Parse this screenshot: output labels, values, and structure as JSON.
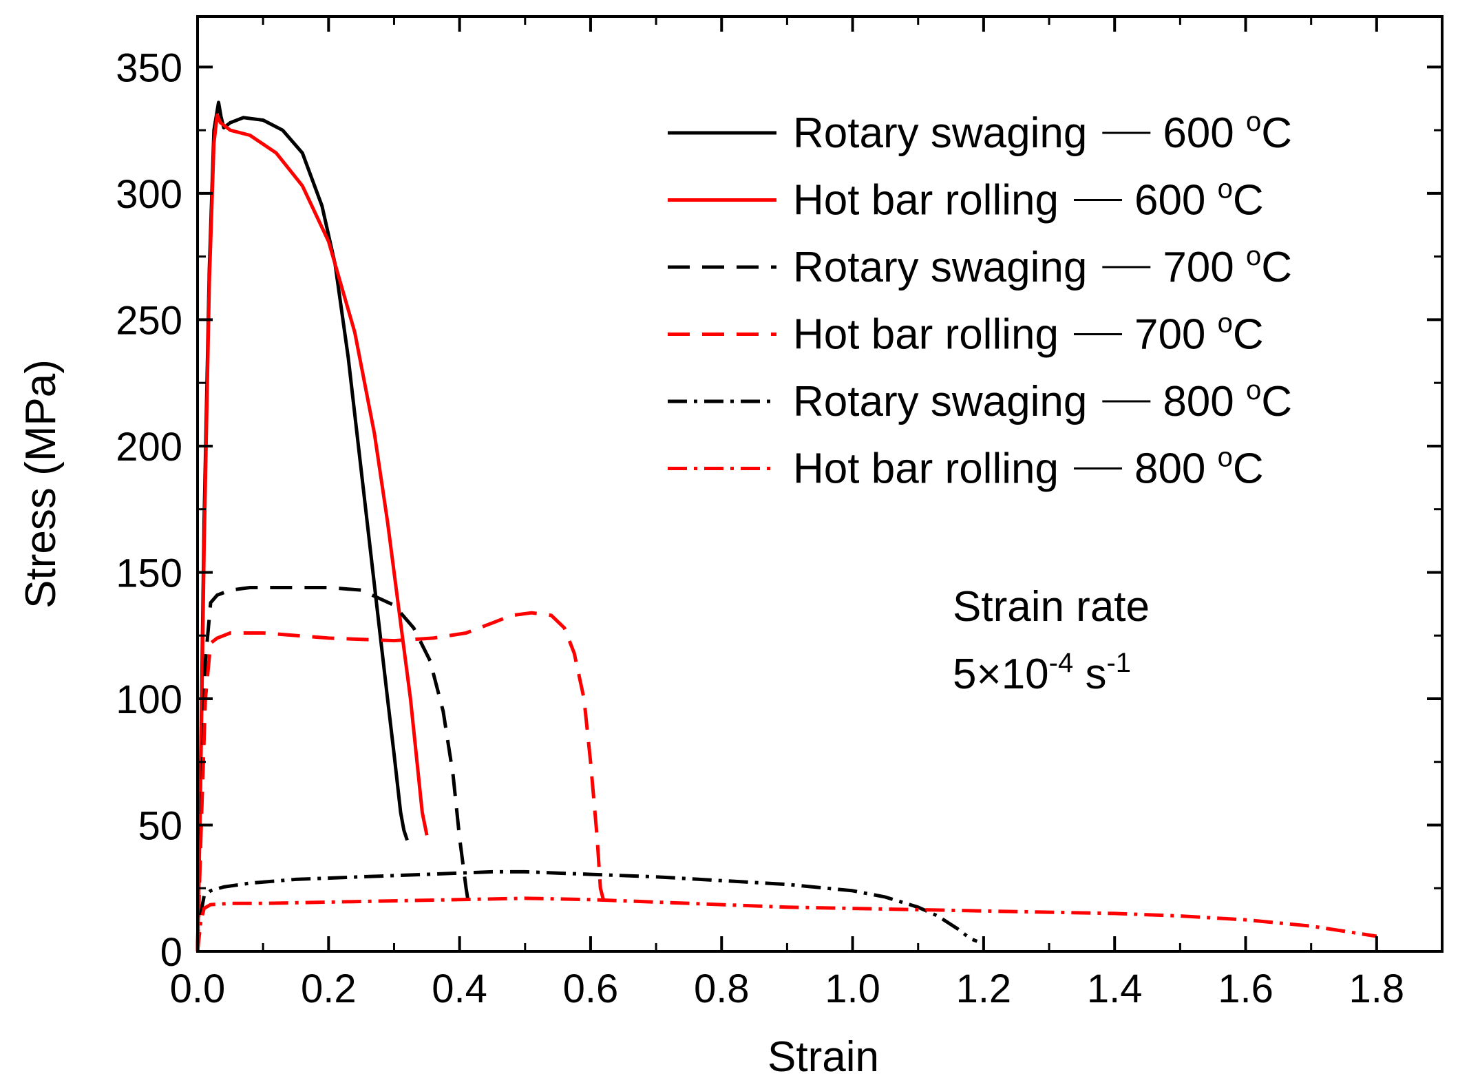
{
  "chart_data": {
    "type": "line",
    "title": "",
    "xlabel": "Strain",
    "ylabel": "Stress (MPa)",
    "xlim": [
      0.0,
      1.9
    ],
    "ylim": [
      0,
      370
    ],
    "xticks": [
      0.0,
      0.2,
      0.4,
      0.6,
      0.8,
      1.0,
      1.2,
      1.4,
      1.6,
      1.8
    ],
    "xtick_labels": [
      "0.0",
      "0.2",
      "0.4",
      "0.6",
      "0.8",
      "1.0",
      "1.2",
      "1.4",
      "1.6",
      "1.8"
    ],
    "yticks": [
      0,
      50,
      100,
      150,
      200,
      250,
      300,
      350
    ],
    "ytick_labels": [
      "0",
      "50",
      "100",
      "150",
      "200",
      "250",
      "300",
      "350"
    ],
    "legend_position": "top-right",
    "annotation": {
      "line1": "Strain rate",
      "base": "5×10",
      "exp1": "-4",
      "unit": " s",
      "exp2": "-1"
    },
    "series": [
      {
        "name": "Rotary swaging — 600 °C",
        "process": "Rotary swaging",
        "temp": "600",
        "deg": "o",
        "unit": "C",
        "color": "#000000",
        "style": "solid",
        "x": [
          0.0,
          0.004,
          0.01,
          0.018,
          0.025,
          0.032,
          0.036,
          0.04,
          0.05,
          0.07,
          0.1,
          0.13,
          0.16,
          0.19,
          0.21,
          0.23,
          0.25,
          0.27,
          0.29,
          0.3,
          0.31,
          0.315,
          0.32
        ],
        "y": [
          0,
          60,
          170,
          270,
          325,
          336,
          330,
          326,
          328,
          330,
          329,
          325,
          316,
          295,
          272,
          235,
          190,
          145,
          100,
          78,
          55,
          48,
          44
        ]
      },
      {
        "name": "Hot bar rolling — 600 °C",
        "process": "Hot bar rolling",
        "temp": "600",
        "deg": "o",
        "unit": "C",
        "color": "#ff0000",
        "style": "solid",
        "x": [
          0.0,
          0.004,
          0.01,
          0.018,
          0.025,
          0.03,
          0.035,
          0.05,
          0.08,
          0.12,
          0.16,
          0.2,
          0.24,
          0.27,
          0.29,
          0.31,
          0.325,
          0.335,
          0.343,
          0.35
        ],
        "y": [
          0,
          55,
          160,
          265,
          320,
          331,
          328,
          325,
          323,
          316,
          303,
          281,
          245,
          205,
          170,
          130,
          100,
          75,
          55,
          46
        ]
      },
      {
        "name": "Rotary swaging — 700 °C",
        "process": "Rotary swaging",
        "temp": "700",
        "deg": "o",
        "unit": "C",
        "color": "#000000",
        "style": "dashed",
        "x": [
          0.0,
          0.005,
          0.012,
          0.02,
          0.03,
          0.05,
          0.08,
          0.12,
          0.2,
          0.25,
          0.3,
          0.33,
          0.355,
          0.375,
          0.39,
          0.4,
          0.41,
          0.413
        ],
        "y": [
          0,
          50,
          115,
          138,
          141,
          143,
          144,
          144,
          144,
          143,
          137,
          128,
          115,
          95,
          70,
          45,
          25,
          20
        ]
      },
      {
        "name": "Hot bar rolling — 700 °C",
        "process": "Hot bar rolling",
        "temp": "700",
        "deg": "o",
        "unit": "C",
        "color": "#ff0000",
        "style": "dashed",
        "x": [
          0.0,
          0.005,
          0.012,
          0.02,
          0.03,
          0.05,
          0.1,
          0.2,
          0.3,
          0.36,
          0.41,
          0.45,
          0.48,
          0.51,
          0.54,
          0.56,
          0.575,
          0.59,
          0.6,
          0.61,
          0.615,
          0.62
        ],
        "y": [
          0,
          45,
          100,
          122,
          124,
          126,
          126,
          124,
          123,
          124,
          126,
          130,
          133,
          134,
          133,
          128,
          118,
          100,
          75,
          45,
          25,
          20
        ]
      },
      {
        "name": "Rotary swaging — 800 °C",
        "process": "Rotary swaging",
        "temp": "800",
        "deg": "o",
        "unit": "C",
        "color": "#000000",
        "style": "dashdot",
        "x": [
          0.0,
          0.005,
          0.01,
          0.02,
          0.04,
          0.08,
          0.15,
          0.25,
          0.35,
          0.45,
          0.5,
          0.6,
          0.7,
          0.8,
          0.9,
          1.0,
          1.05,
          1.1,
          1.13,
          1.16,
          1.18,
          1.19
        ],
        "y": [
          0,
          15,
          22,
          24,
          25.5,
          27,
          28.5,
          29.5,
          30.5,
          31.5,
          31.5,
          30.5,
          29.5,
          28,
          26.5,
          24,
          21.5,
          17.5,
          14,
          9,
          5,
          4
        ]
      },
      {
        "name": "Hot bar rolling — 800 °C",
        "process": "Hot bar rolling",
        "temp": "800",
        "deg": "o",
        "unit": "C",
        "color": "#ff0000",
        "style": "dashdot",
        "x": [
          0.0,
          0.005,
          0.01,
          0.02,
          0.05,
          0.1,
          0.2,
          0.3,
          0.4,
          0.5,
          0.6,
          0.7,
          0.8,
          0.9,
          1.0,
          1.1,
          1.2,
          1.3,
          1.4,
          1.5,
          1.6,
          1.7,
          1.75,
          1.8
        ],
        "y": [
          0,
          12,
          17,
          18.5,
          19,
          19,
          19.5,
          20,
          20.5,
          21,
          20.5,
          19.5,
          18.5,
          17.5,
          17,
          16.5,
          16,
          15.5,
          15,
          14,
          12.5,
          10,
          8,
          6
        ]
      }
    ]
  }
}
